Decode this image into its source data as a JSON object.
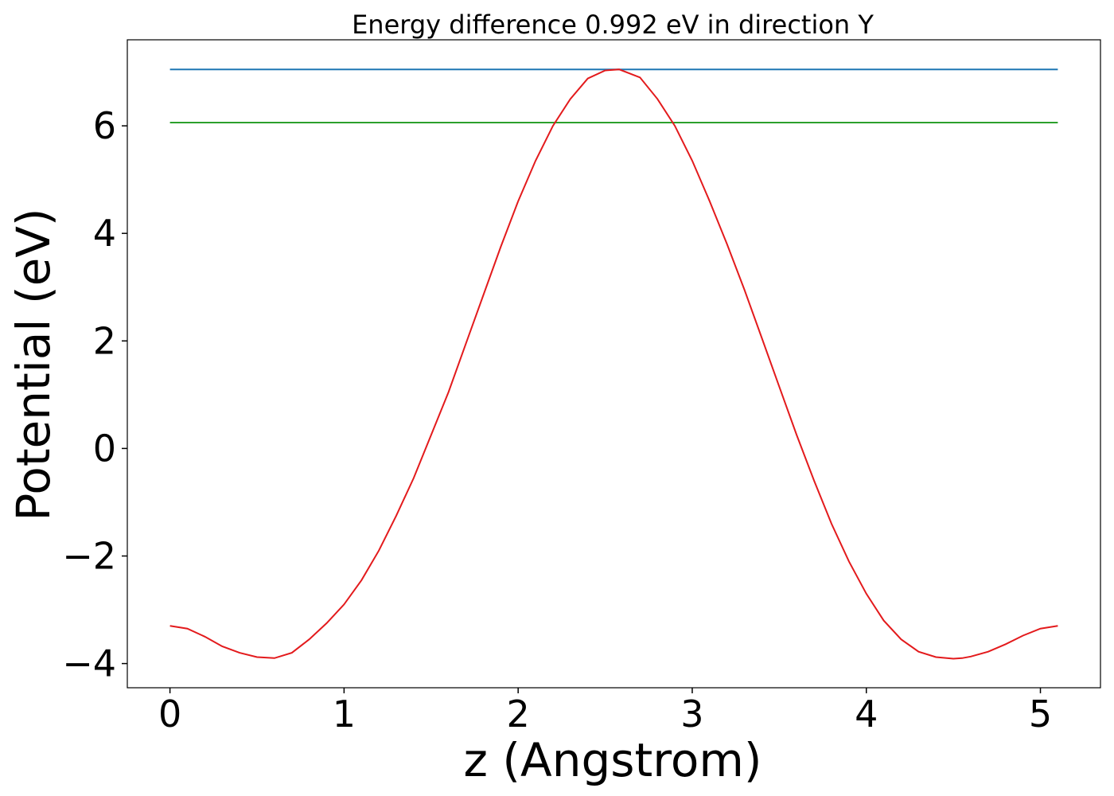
{
  "chart_data": {
    "type": "line",
    "title": "Energy difference 0.992 eV in direction Y",
    "xlabel": "z (Angstrom)",
    "ylabel": "Potential (eV)",
    "xlim": [
      -0.245,
      5.345
    ],
    "ylim": [
      -4.45,
      7.6
    ],
    "xticks": [
      0,
      1,
      2,
      3,
      4,
      5
    ],
    "xtick_labels": [
      "0",
      "1",
      "2",
      "3",
      "4",
      "5"
    ],
    "yticks": [
      -4,
      -2,
      0,
      2,
      4,
      6
    ],
    "ytick_labels": [
      "−4",
      "−2",
      "0",
      "2",
      "4",
      "6"
    ],
    "grid": false,
    "legend": "none",
    "series": [
      {
        "color": "#1f77b4",
        "x": [
          0,
          5.1
        ],
        "y": [
          7.05,
          7.05
        ]
      },
      {
        "color": "#2ca02c",
        "x": [
          0,
          5.1
        ],
        "y": [
          6.06,
          6.06
        ]
      },
      {
        "color": "#e31a1c",
        "x": [
          0,
          0.1,
          0.2,
          0.3,
          0.4,
          0.5,
          0.6,
          0.7,
          0.8,
          0.9,
          1.0,
          1.1,
          1.2,
          1.3,
          1.4,
          1.5,
          1.6,
          1.7,
          1.8,
          1.9,
          2.0,
          2.1,
          2.2,
          2.3,
          2.4,
          2.5,
          2.58,
          2.7,
          2.8,
          2.9,
          3.0,
          3.1,
          3.2,
          3.3,
          3.4,
          3.5,
          3.6,
          3.7,
          3.8,
          3.9,
          4.0,
          4.1,
          4.2,
          4.3,
          4.4,
          4.5,
          4.55,
          4.6,
          4.7,
          4.8,
          4.9,
          5.0,
          5.1
        ],
        "y": [
          -3.3,
          -3.35,
          -3.5,
          -3.68,
          -3.8,
          -3.88,
          -3.9,
          -3.8,
          -3.55,
          -3.25,
          -2.9,
          -2.45,
          -1.9,
          -1.25,
          -0.55,
          0.25,
          1.05,
          1.95,
          2.85,
          3.75,
          4.6,
          5.35,
          6.0,
          6.5,
          6.88,
          7.03,
          7.05,
          6.9,
          6.5,
          6.0,
          5.35,
          4.6,
          3.8,
          2.95,
          2.05,
          1.15,
          0.25,
          -0.6,
          -1.4,
          -2.1,
          -2.7,
          -3.2,
          -3.55,
          -3.78,
          -3.88,
          -3.91,
          -3.9,
          -3.87,
          -3.78,
          -3.64,
          -3.48,
          -3.35,
          -3.3
        ]
      }
    ]
  }
}
